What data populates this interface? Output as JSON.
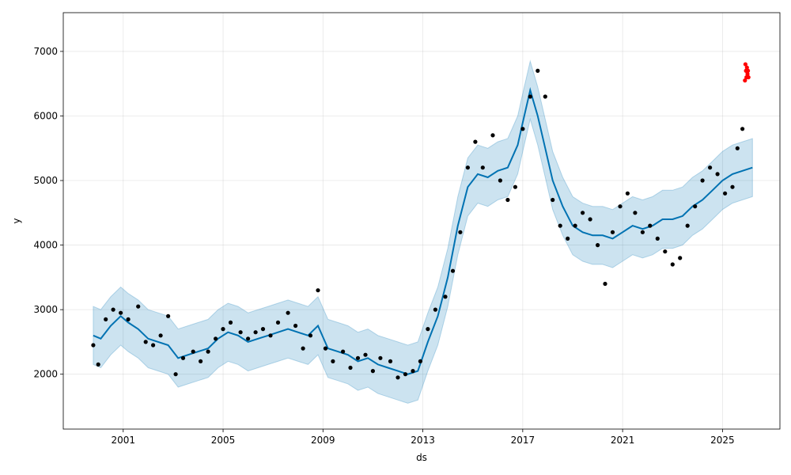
{
  "chart_data": {
    "type": "line",
    "title": "",
    "xlabel": "ds",
    "ylabel": "y",
    "x_range": [
      1998.6,
      2027.3
    ],
    "ylim": [
      1150,
      7600
    ],
    "x_ticks": [
      2001,
      2005,
      2009,
      2013,
      2017,
      2021,
      2025
    ],
    "y_ticks": [
      2000,
      3000,
      4000,
      5000,
      6000,
      7000
    ],
    "grid": true,
    "legend": "none",
    "colors": {
      "observed": "#000000",
      "forecast_line": "#0072b2",
      "uncertainty_band": "#0072b2",
      "holdout": "#ff0000"
    },
    "series": [
      {
        "role": "observed",
        "marker": "point",
        "x": [
          1999.8,
          2000.0,
          2000.3,
          2000.6,
          2000.9,
          2001.2,
          2001.6,
          2001.9,
          2002.2,
          2002.5,
          2002.8,
          2003.1,
          2003.4,
          2003.8,
          2004.1,
          2004.4,
          2004.7,
          2005.0,
          2005.3,
          2005.7,
          2006.0,
          2006.3,
          2006.6,
          2006.9,
          2007.2,
          2007.6,
          2007.9,
          2008.2,
          2008.5,
          2008.8,
          2009.1,
          2009.4,
          2009.8,
          2010.1,
          2010.4,
          2010.7,
          2011.0,
          2011.3,
          2011.7,
          2012.0,
          2012.3,
          2012.6,
          2012.9,
          2013.2,
          2013.5,
          2013.9,
          2014.2,
          2014.5,
          2014.8,
          2015.1,
          2015.4,
          2015.8,
          2016.1,
          2016.4,
          2016.7,
          2017.0,
          2017.3,
          2017.6,
          2017.9,
          2018.2,
          2018.5,
          2018.8,
          2019.1,
          2019.4,
          2019.7,
          2020.0,
          2020.3,
          2020.6,
          2020.9,
          2021.2,
          2021.5,
          2021.8,
          2022.1,
          2022.4,
          2022.7,
          2023.0,
          2023.3,
          2023.6,
          2023.9,
          2024.2,
          2024.5,
          2024.8,
          2025.1,
          2025.4,
          2025.6,
          2025.8
        ],
        "y": [
          2450,
          2150,
          2850,
          3000,
          2950,
          2850,
          3050,
          2500,
          2450,
          2600,
          2900,
          2000,
          2250,
          2350,
          2200,
          2350,
          2550,
          2700,
          2800,
          2650,
          2550,
          2650,
          2700,
          2600,
          2800,
          2950,
          2750,
          2400,
          2600,
          3300,
          2400,
          2200,
          2350,
          2100,
          2250,
          2300,
          2050,
          2250,
          2200,
          1950,
          2000,
          2050,
          2200,
          2700,
          3000,
          3200,
          3600,
          4200,
          5200,
          5600,
          5200,
          5700,
          5000,
          4700,
          4900,
          5800,
          6300,
          6700,
          6300,
          4700,
          4300,
          4100,
          4300,
          4500,
          4400,
          4000,
          3400,
          4200,
          4600,
          4800,
          4500,
          4200,
          4300,
          4100,
          3900,
          3700,
          3800,
          4300,
          4600,
          5000,
          5200,
          5100,
          4800,
          4900,
          5500,
          5800
        ]
      },
      {
        "role": "holdout",
        "marker": "point",
        "x": [
          2025.9,
          2025.92,
          2025.94,
          2025.96,
          2025.98,
          2026.0,
          2026.02,
          2026.04
        ],
        "y": [
          6550,
          6800,
          6700,
          6600,
          6750,
          6650,
          6700,
          6600
        ]
      },
      {
        "role": "forecast_line",
        "marker": "line",
        "x": [
          1999.8,
          2000.1,
          2000.5,
          2000.9,
          2001.2,
          2001.6,
          2002.0,
          2002.4,
          2002.8,
          2003.2,
          2003.6,
          2004.0,
          2004.4,
          2004.8,
          2005.2,
          2005.6,
          2006.0,
          2006.4,
          2006.8,
          2007.2,
          2007.6,
          2008.0,
          2008.4,
          2008.8,
          2009.2,
          2009.6,
          2010.0,
          2010.4,
          2010.8,
          2011.2,
          2011.6,
          2012.0,
          2012.4,
          2012.8,
          2013.2,
          2013.6,
          2014.0,
          2014.4,
          2014.8,
          2015.2,
          2015.6,
          2016.0,
          2016.4,
          2016.8,
          2017.0,
          2017.3,
          2017.6,
          2017.9,
          2018.2,
          2018.6,
          2019.0,
          2019.4,
          2019.8,
          2020.2,
          2020.6,
          2021.0,
          2021.4,
          2021.8,
          2022.2,
          2022.6,
          2023.0,
          2023.4,
          2023.8,
          2024.2,
          2024.6,
          2025.0,
          2025.4,
          2025.8,
          2026.2
        ],
        "y": [
          2600,
          2550,
          2750,
          2900,
          2800,
          2700,
          2550,
          2500,
          2450,
          2250,
          2300,
          2350,
          2400,
          2550,
          2650,
          2600,
          2500,
          2550,
          2600,
          2650,
          2700,
          2650,
          2600,
          2750,
          2400,
          2350,
          2300,
          2200,
          2250,
          2150,
          2100,
          2050,
          2000,
          2050,
          2500,
          2900,
          3500,
          4300,
          4900,
          5100,
          5050,
          5150,
          5200,
          5550,
          5900,
          6400,
          6000,
          5500,
          5000,
          4600,
          4300,
          4200,
          4150,
          4150,
          4100,
          4200,
          4300,
          4250,
          4300,
          4400,
          4400,
          4450,
          4600,
          4700,
          4850,
          5000,
          5100,
          5150,
          5200
        ]
      }
    ],
    "uncertainty_band_halfwidth": 450
  }
}
